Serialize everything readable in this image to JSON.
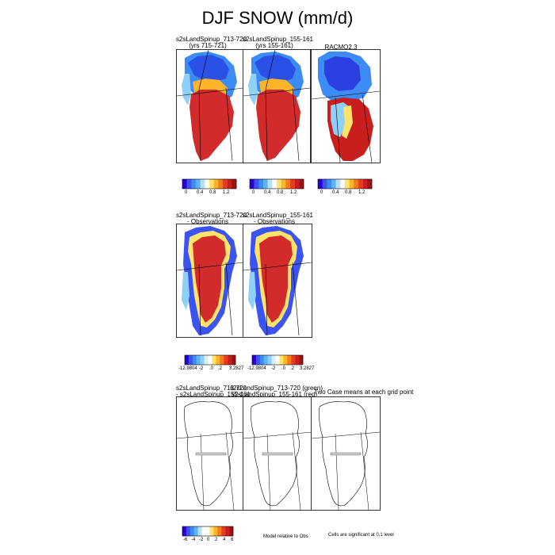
{
  "figure": {
    "title": "DJF SNOW (mm/d)"
  },
  "row1": {
    "panels": [
      {
        "title_line1": "s2sLandSpinup_713-720",
        "title_line2": "(yrs 715-721)"
      },
      {
        "title_line1": "s2sLandSpinup_155-161",
        "title_line2": "(yrs 155-161)"
      },
      {
        "title_line1": "RACMO2.3",
        "title_line2": ""
      }
    ],
    "colorbar": {
      "ticks": [
        "0",
        "0.4",
        "0.8",
        "1.2"
      ],
      "colors": [
        "#2a00d4",
        "#3b53f0",
        "#3d8bf5",
        "#5fb4f7",
        "#b7e0f7",
        "#ffffff",
        "#ffe36b",
        "#fcb528",
        "#f57a1d",
        "#e83c1d",
        "#c81e1e",
        "#a01010"
      ]
    }
  },
  "row2": {
    "panels": [
      {
        "title_line1": "s2sLandSpinup_713-720",
        "title_line2": "- Observations"
      },
      {
        "title_line1": "s2sLandSpinup_155-161",
        "title_line2": "- Observations"
      }
    ],
    "colorbars": [
      {
        "ticks": [
          "-12.9804",
          "-2",
          ".0",
          ".2",
          "3.2827"
        ]
      },
      {
        "ticks": [
          "-12.9804",
          "-2",
          ".0",
          ".2",
          "3.2827"
        ]
      }
    ],
    "colors": [
      "#2a00d4",
      "#3b53f0",
      "#3d8bf5",
      "#5fb4f7",
      "#8fd0f7",
      "#d7eef9",
      "#ffffff",
      "#ffe36b",
      "#fcb528",
      "#f57a1d",
      "#e83c1d",
      "#c81e1e",
      "#a01010"
    ]
  },
  "row3": {
    "panels": [
      {
        "title_line1": "s2sLandSpinup_713-720",
        "title_line2": "- s2sLandSpinup_155-161"
      },
      {
        "title_line1": "s2sLandSpinup_713-720 (green)",
        "title_line2": "s2sLandSpinup_155-161 (red)"
      },
      {
        "title_line1": "Two Case means at each grid point",
        "title_line2": ""
      }
    ],
    "colorbar": {
      "ticks": [
        "-6",
        "-4",
        "-2",
        "0",
        "2",
        "4",
        "6"
      ],
      "colors": [
        "#2a00d4",
        "#3b53f0",
        "#3d8bf5",
        "#5fb4f7",
        "#b7e0f7",
        "#ffffff",
        "#ffffff",
        "#ffe36b",
        "#fcb528",
        "#f57a1d",
        "#e83c1d",
        "#c81e1e",
        "#a01010"
      ]
    },
    "note_model": "Model relative to Obs",
    "note_significance": "Cells are significant at 0.1 level"
  }
}
